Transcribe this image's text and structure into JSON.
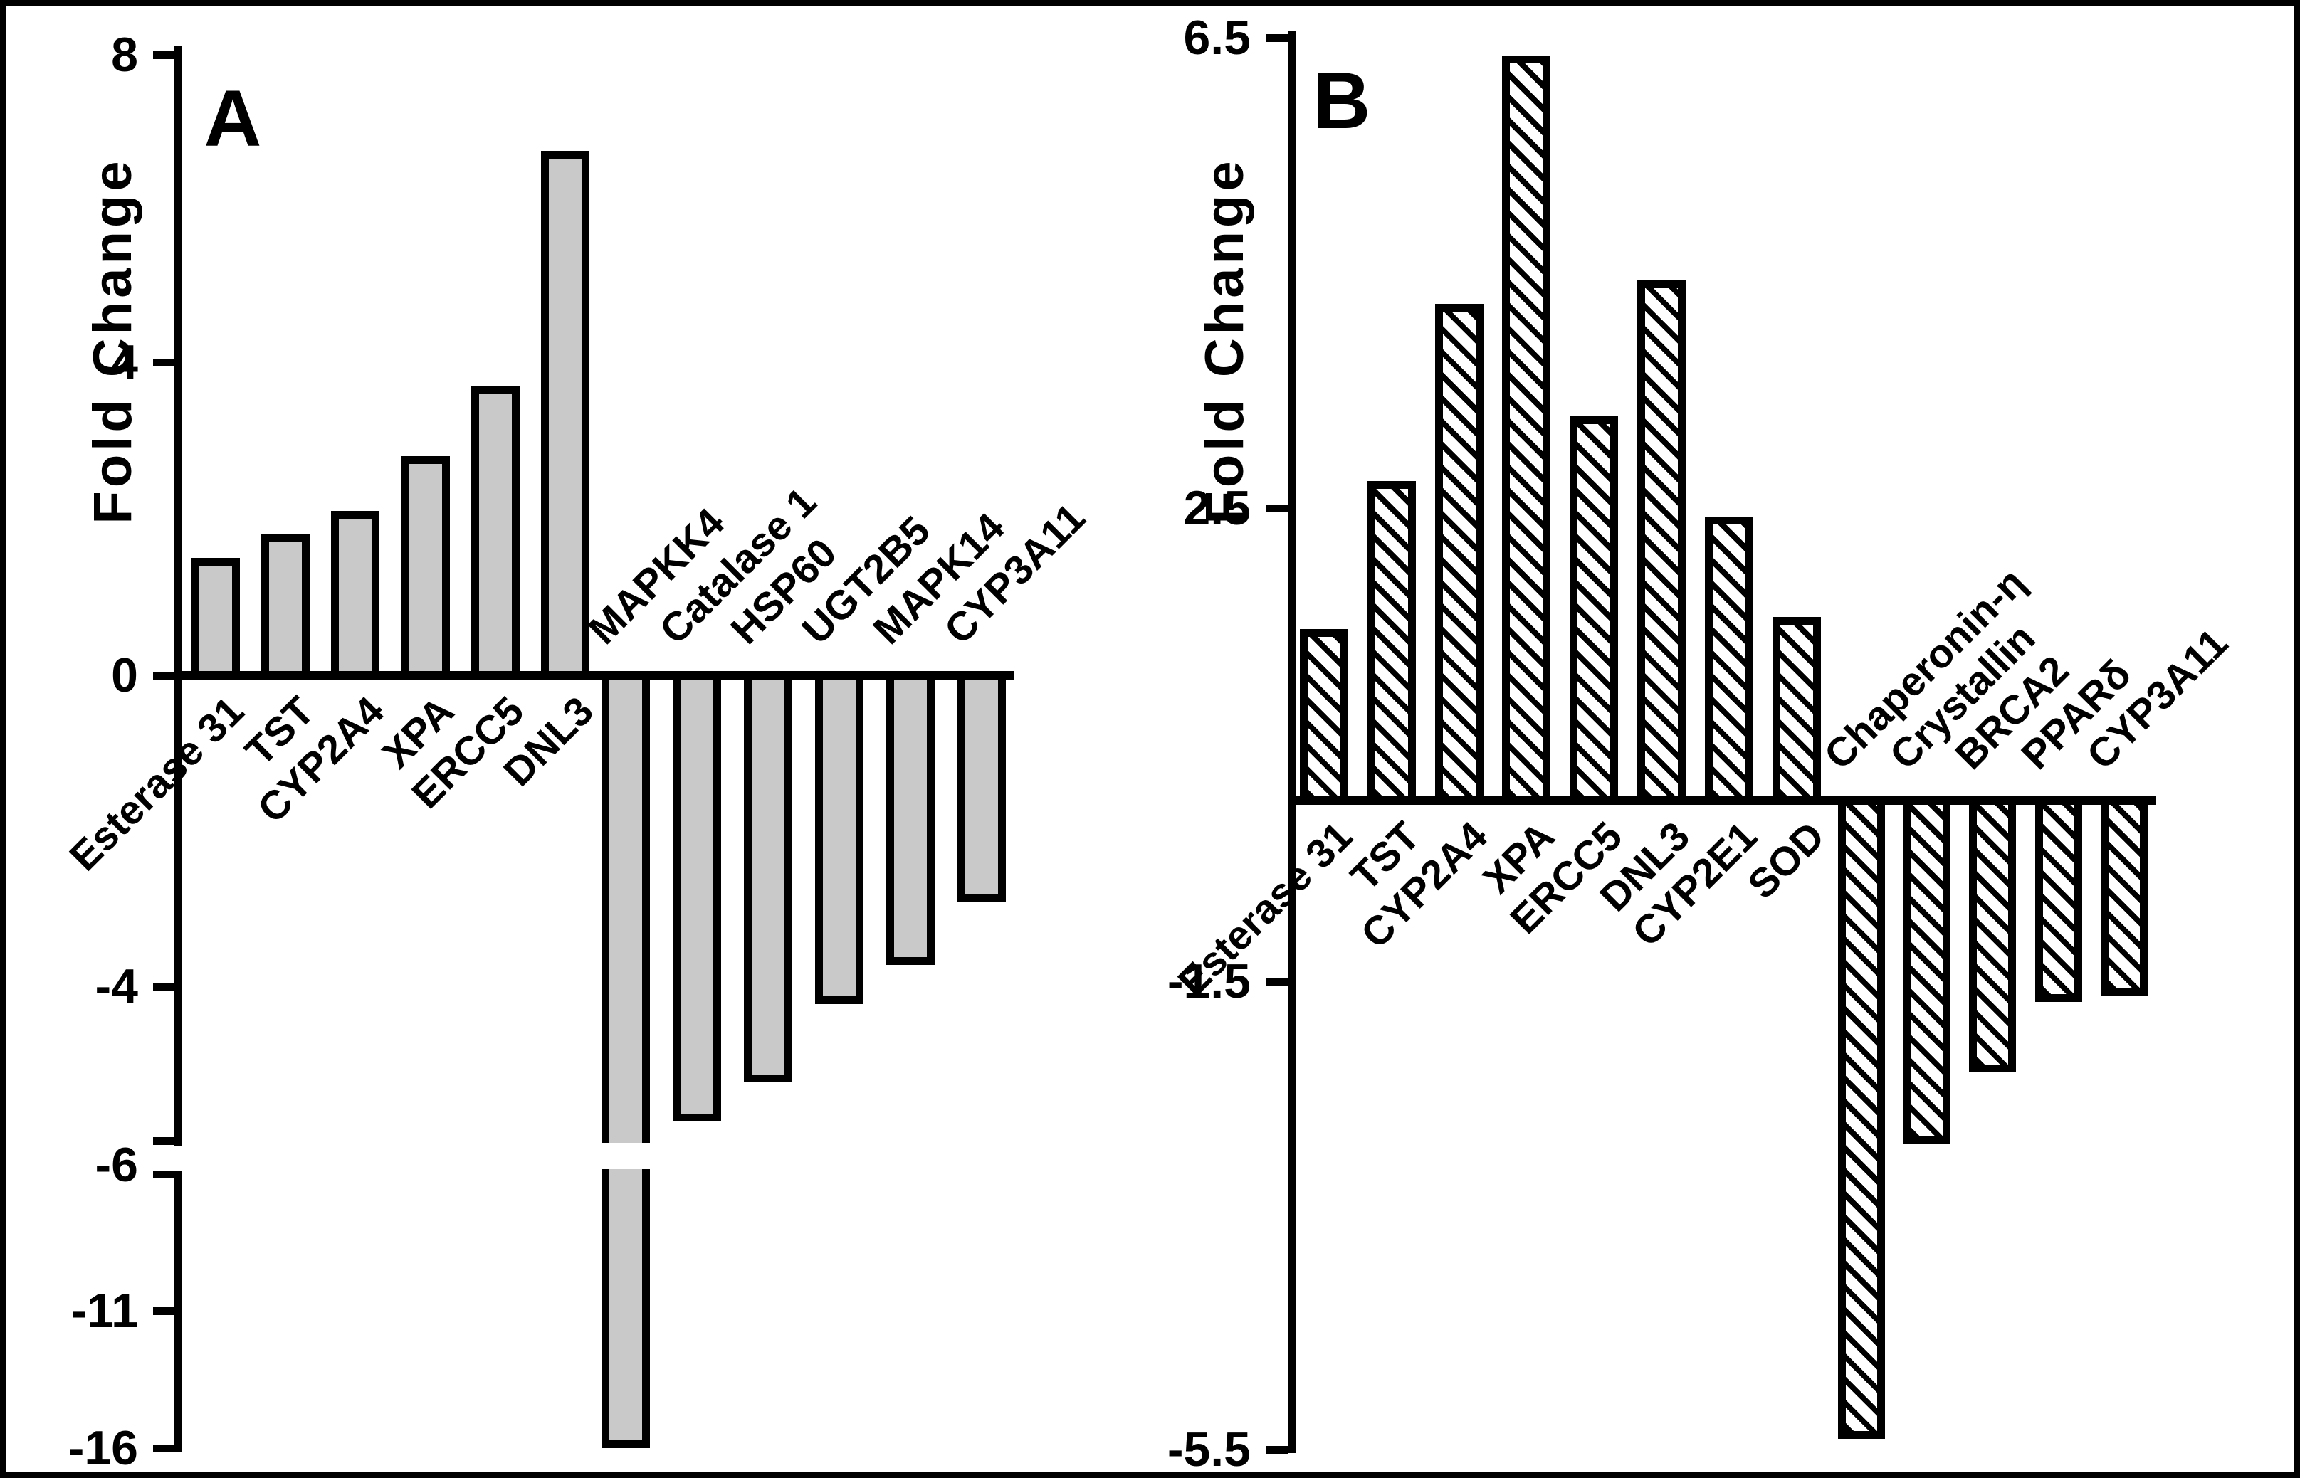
{
  "figure": {
    "background": "#ffffff",
    "border_color": "#000000",
    "bar_fill_gray": "#c9c9c9",
    "bar_outline": "#000000"
  },
  "chart_data": [
    {
      "panel_label": "A",
      "type": "bar",
      "title": "",
      "xlabel": "",
      "ylabel": "Fold Change",
      "bar_style": "solid-gray",
      "bar_fill": "#c9c9c9",
      "categories": [
        "Esterase 31",
        "TST",
        "CYP2A4",
        "XPA",
        "ERCC5",
        "DNL3",
        "MAPKK4",
        "Catalase 1",
        "HSP60",
        "UGT2B5",
        "MAPK14",
        "CYP3A11"
      ],
      "values": [
        1.5,
        1.8,
        2.1,
        2.8,
        3.7,
        6.7,
        -16,
        -5.7,
        -5.2,
        -4.2,
        -3.7,
        -2.9
      ],
      "positive_count": 6,
      "yticks": [
        "8",
        "4",
        "0",
        "-4",
        "-6",
        "-11",
        "-16"
      ],
      "axis_break": true,
      "ylim_upper_segment": [
        -6,
        8
      ],
      "ylim_lower_segment": [
        -16,
        -6
      ],
      "grid": false,
      "legend": false
    },
    {
      "panel_label": "B",
      "type": "bar",
      "title": "",
      "xlabel": "",
      "ylabel": "Fold Change",
      "bar_style": "diagonal-hatch",
      "hatch_direction": "backslash",
      "categories": [
        "Esterase 31",
        "TST",
        "CYP2A4",
        "XPA",
        "ERCC5",
        "DNL3",
        "CYP2E1",
        "SOD",
        "Chaperonin-η",
        "Crystallin",
        "BRCA2",
        "PPARδ",
        "CYP3A11"
      ],
      "values": [
        1.45,
        2.7,
        4.2,
        6.3,
        3.25,
        4.4,
        2.4,
        1.55,
        -5.4,
        -2.9,
        -2.3,
        -1.7,
        -1.65
      ],
      "positive_count": 8,
      "yticks": [
        "6.5",
        "2.5",
        "-1.5",
        "-5.5"
      ],
      "axis_break": false,
      "ylim": [
        -5.5,
        6.5
      ],
      "grid": false,
      "legend": false
    }
  ]
}
